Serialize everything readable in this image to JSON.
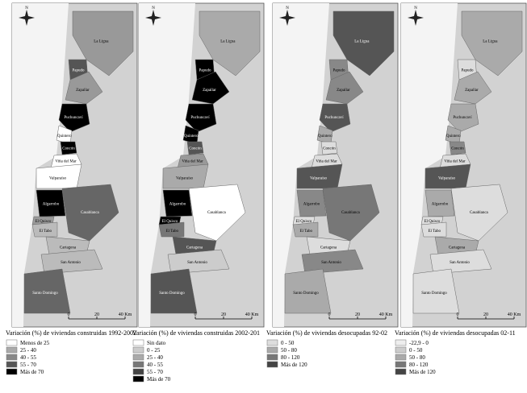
{
  "panels": [
    {
      "north": "N",
      "scale": [
        "0",
        "20",
        "40 Km"
      ],
      "labels": [
        "La Ligua",
        "Papudo",
        "Zapallar",
        "Puchuncaví",
        "Quintero",
        "Concón",
        "Viña del Mar",
        "Valparaíso",
        "Casablanca",
        "Algarrobo",
        "El Quisco",
        "El Tabo",
        "Cartagena",
        "San Antonio",
        "Santo Domingo"
      ],
      "legend": {
        "title": "Variación (%) de viviendas construidas 1992-2002",
        "items": [
          "Menos de 25",
          "25 - 40",
          "40 - 55",
          "55 - 70",
          "Más de 70"
        ]
      }
    },
    {
      "north": "N",
      "scale": [
        "0",
        "20",
        "40 Km"
      ],
      "labels": [
        "La Ligua",
        "Papudo",
        "Zapallar",
        "Puchuncaví",
        "Quintero",
        "Concón",
        "Viña del Mar",
        "Valparaíso",
        "Casablanca",
        "Algarrobo",
        "El Quisco",
        "El Tabo",
        "Cartagena",
        "San Antonio",
        "Santo Domingo"
      ],
      "legend": {
        "title": "Variación (%) de viviendas construidas 2002-201",
        "items": [
          "Sin dato",
          "0 - 25",
          "25 - 40",
          "40 - 55",
          "55 - 70",
          "Más de 70"
        ]
      }
    },
    {
      "north": "N",
      "scale": [
        "0",
        "20",
        "40 Km"
      ],
      "labels": [
        "La Ligua",
        "Papudo",
        "Zapallar",
        "Puchuncaví",
        "Quintero",
        "Concón",
        "Viña del Mar",
        "Valparaíso",
        "Casablanca",
        "Algarrobo",
        "El Quisco",
        "El Tabo",
        "Cartagena",
        "San Antonio",
        "Santo Domingo"
      ],
      "legend": {
        "title": "Variación (%) de viviendas desocupadas 92-02",
        "items": [
          "0 - 50",
          "50 - 80",
          "80 - 120",
          "Más de 120"
        ]
      }
    },
    {
      "north": "N",
      "scale": [
        "0",
        "20",
        "40 Km"
      ],
      "labels": [
        "La Ligua",
        "Papudo",
        "Zapallar",
        "Puchuncaví",
        "Quintero",
        "Concón",
        "Viña del Mar",
        "Valparaíso",
        "Casablanca",
        "Algarrobo",
        "El Quisco",
        "El Tabo",
        "Cartagena",
        "San Antonio",
        "Santo Domingo"
      ],
      "legend": {
        "title": "Variación (%) de viviendas desocupadas 02-11",
        "items": [
          "-22,9 - 0",
          "0 - 50",
          "50 - 80",
          "80 - 120",
          "Más de 120"
        ]
      }
    }
  ]
}
